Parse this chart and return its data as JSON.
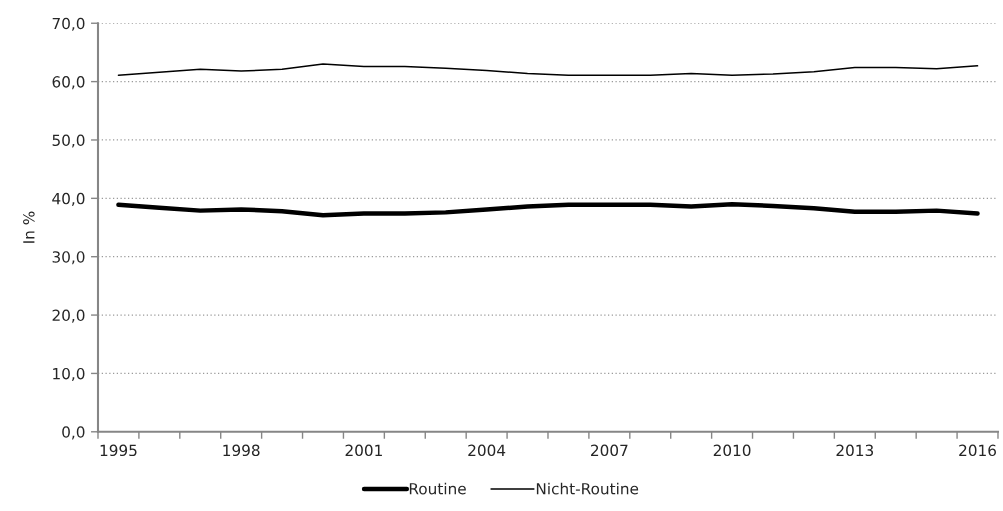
{
  "chart_data": {
    "type": "line",
    "ylabel": "In %",
    "categories": [
      "1995",
      null,
      null,
      "1998",
      null,
      null,
      "2001",
      null,
      null,
      "2004",
      null,
      null,
      "2007",
      null,
      null,
      "2010",
      null,
      null,
      "2013",
      null,
      null,
      "2016"
    ],
    "series": [
      {
        "name": "Routine",
        "color": "#000000",
        "values": [
          38.9,
          38.4,
          37.9,
          38.1,
          37.8,
          37.1,
          37.4,
          37.4,
          37.6,
          38.1,
          38.6,
          38.9,
          38.9,
          38.9,
          38.6,
          39.0,
          38.7,
          38.3,
          37.7,
          37.7,
          37.9,
          37.4
        ]
      },
      {
        "name": "Nicht-Routine",
        "color": "#000000",
        "values": [
          61.1,
          61.6,
          62.1,
          61.8,
          62.1,
          63.0,
          62.6,
          62.6,
          62.3,
          61.9,
          61.4,
          61.1,
          61.1,
          61.1,
          61.4,
          61.1,
          61.3,
          61.7,
          62.4,
          62.4,
          62.2,
          62.7
        ]
      }
    ],
    "ylim": [
      0,
      70
    ],
    "yticks": [
      {
        "value": 0,
        "label": "0,0"
      },
      {
        "value": 10,
        "label": "10,0"
      },
      {
        "value": 20,
        "label": "20,0"
      },
      {
        "value": 30,
        "label": "30,0"
      },
      {
        "value": 40,
        "label": "40,0"
      },
      {
        "value": 50,
        "label": "50,0"
      },
      {
        "value": 60,
        "label": "60,0"
      },
      {
        "value": 70,
        "label": "70,0"
      }
    ],
    "grid": "y",
    "legend": "bottom"
  }
}
